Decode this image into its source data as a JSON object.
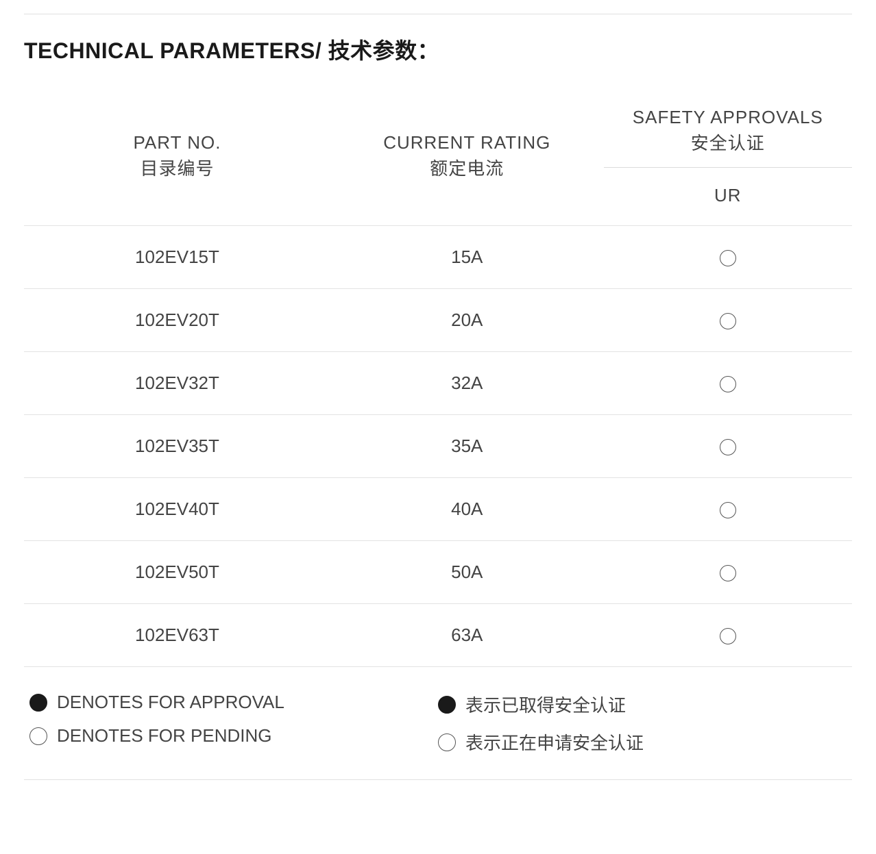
{
  "section_title": "TECHNICAL PARAMETERS/ 技术参数：",
  "table": {
    "columns": {
      "part_no": {
        "en": "PART  NO.",
        "zh": "目录编号"
      },
      "current_rating": {
        "en": "CURRENT RATING",
        "zh": "额定电流"
      },
      "approvals": {
        "en": "SAFETY APPROVALS",
        "zh": "安全认证",
        "sub": "UR"
      }
    },
    "rows": [
      {
        "part_no": "102EV15T",
        "current": "15A",
        "approval": "pending"
      },
      {
        "part_no": "102EV20T",
        "current": "20A",
        "approval": "pending"
      },
      {
        "part_no": "102EV32T",
        "current": "32A",
        "approval": "pending"
      },
      {
        "part_no": "102EV35T",
        "current": "35A",
        "approval": "pending"
      },
      {
        "part_no": "102EV40T",
        "current": "40A",
        "approval": "pending"
      },
      {
        "part_no": "102EV50T",
        "current": "50A",
        "approval": "pending"
      },
      {
        "part_no": "102EV63T",
        "current": "63A",
        "approval": "pending"
      }
    ]
  },
  "legend": {
    "en": {
      "approved": "DENOTES FOR APPROVAL",
      "pending": "DENOTES FOR PENDING"
    },
    "zh": {
      "approved": "表示已取得安全认证",
      "pending": "表示正在申请安全认证"
    }
  },
  "colors": {
    "text": "#444444",
    "heading": "#1a1a1a",
    "rule": "#e0e0e0",
    "row_border": "#e3e3e3",
    "circle_stroke": "#555555",
    "circle_fill": "#1a1a1a",
    "background": "#ffffff"
  }
}
